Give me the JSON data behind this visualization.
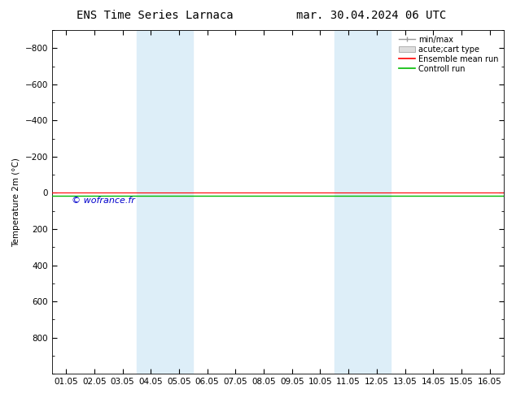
{
  "title_left": "ENS Time Series Larnaca",
  "title_right": "mar. 30.04.2024 06 UTC",
  "ylabel": "Temperature 2m (°C)",
  "ylim_top": -900,
  "ylim_bottom": 1000,
  "yticks": [
    -800,
    -600,
    -400,
    -200,
    0,
    200,
    400,
    600,
    800
  ],
  "xtick_labels": [
    "01.05",
    "02.05",
    "03.05",
    "04.05",
    "05.05",
    "06.05",
    "07.05",
    "08.05",
    "09.05",
    "10.05",
    "11.05",
    "12.05",
    "13.05",
    "14.05",
    "15.05",
    "16.05"
  ],
  "shaded_bands": [
    {
      "xmin": 4,
      "xmax": 6,
      "color": "#ddeef8"
    },
    {
      "xmin": 11,
      "xmax": 13,
      "color": "#ddeef8"
    }
  ],
  "control_run_y": 15,
  "ensemble_mean_y": 0,
  "control_run_color": "#00bb00",
  "ensemble_mean_color": "#ff0000",
  "minmax_color": "#999999",
  "acutecart_facecolor": "#dddddd",
  "acutecart_edgecolor": "#999999",
  "watermark": "© wofrance.fr",
  "watermark_color": "#0000cc",
  "background_color": "#ffffff",
  "legend_labels": [
    "min/max",
    "acute;cart type",
    "Ensemble mean run",
    "Controll run"
  ],
  "title_fontsize": 10,
  "axis_fontsize": 7.5,
  "ylabel_fontsize": 7.5,
  "legend_fontsize": 7
}
